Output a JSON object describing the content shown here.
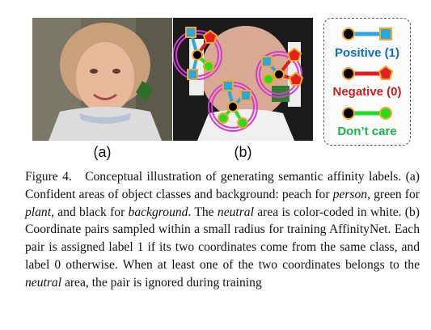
{
  "figure": {
    "subfigure_labels": [
      "(a)",
      "(b)"
    ],
    "legend": {
      "positive": "Positive (1)",
      "negative": "Negative (0)",
      "dont_care": "Don’t care"
    },
    "colors": {
      "positive": "#0a6fc0",
      "negative": "#c81f1f",
      "dont_care": "#19b34c",
      "link_blue": "#29a8e0",
      "link_red": "#e02020",
      "link_green": "#22dd22",
      "marker_orange": "#f5a623",
      "circle_magenta": "#d63bd6"
    }
  },
  "caption": {
    "label": "Figure 4.",
    "segments": [
      {
        "text": "Conceptual illustration of generating semantic affinity labels. (a) Confident areas of object classes and background: peach for ",
        "italic": false
      },
      {
        "text": "person",
        "italic": true
      },
      {
        "text": ", green for ",
        "italic": false
      },
      {
        "text": "plant",
        "italic": true
      },
      {
        "text": ", and black for ",
        "italic": false
      },
      {
        "text": "background",
        "italic": true
      },
      {
        "text": ". The ",
        "italic": false
      },
      {
        "text": "neutral",
        "italic": true
      },
      {
        "text": " area is color-coded in white. (b) Coordinate pairs sampled within a small radius for training AffinityNet. Each pair is assigned label 1 if its two coordinates come from the same class, and label 0 otherwise. When at least one of the two coordinates belongs to the ",
        "italic": false
      },
      {
        "text": "neutral",
        "italic": true
      },
      {
        "text": " area, the pair is ignored during training",
        "italic": false
      }
    ]
  }
}
